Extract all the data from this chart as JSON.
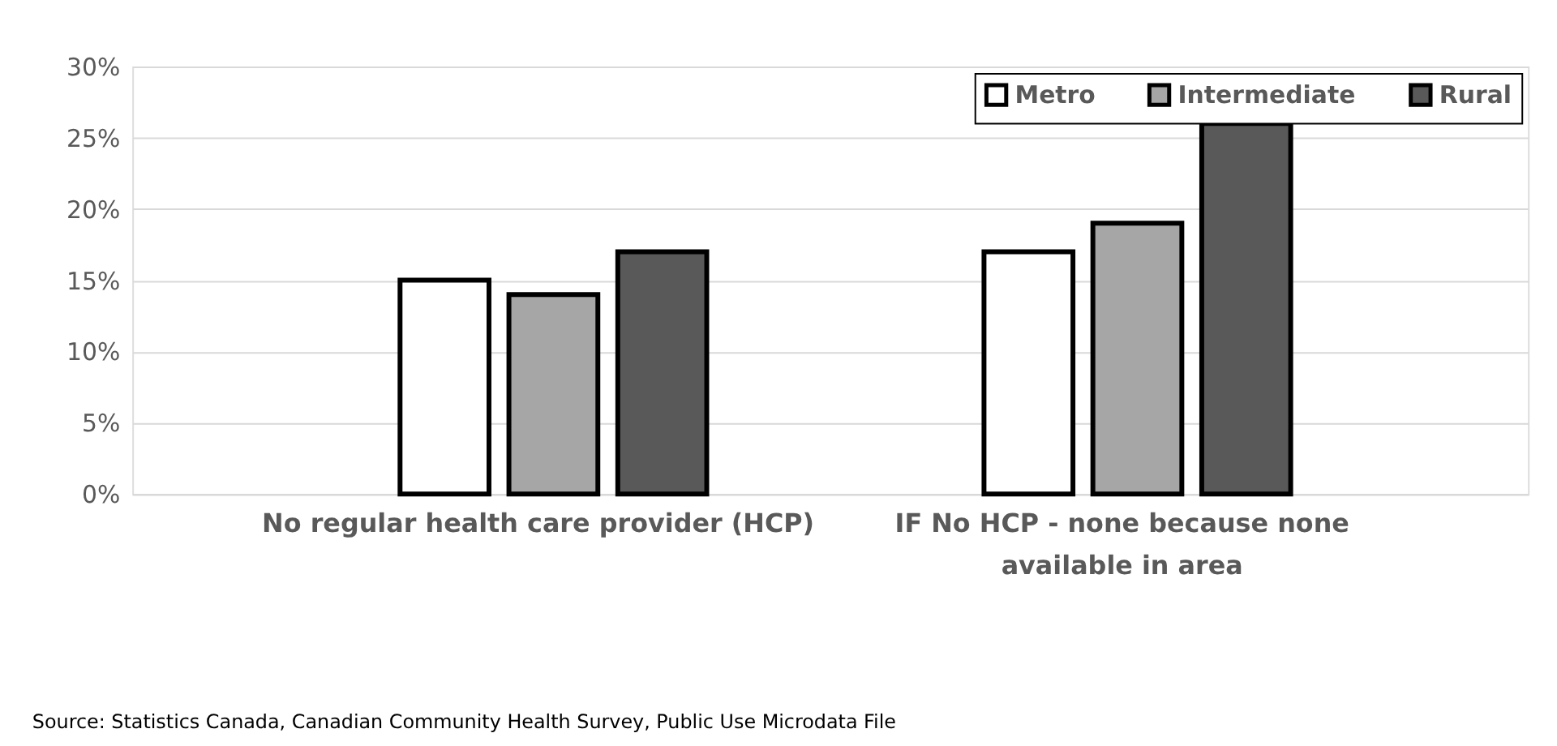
{
  "chart_data": {
    "type": "bar",
    "categories": [
      "No regular health care provider (HCP)",
      "IF No HCP - none because none available in area"
    ],
    "series": [
      {
        "name": "Metro",
        "color": "#ffffff",
        "values": [
          15,
          17
        ]
      },
      {
        "name": "Intermediate",
        "color": "#a6a6a6",
        "values": [
          14,
          19
        ]
      },
      {
        "name": "Rural",
        "color": "#595959",
        "values": [
          17,
          26
        ]
      }
    ],
    "ylim": [
      0,
      30
    ],
    "yticks": [
      {
        "value": 0,
        "label": "0%"
      },
      {
        "value": 5,
        "label": "5%"
      },
      {
        "value": 10,
        "label": "10%"
      },
      {
        "value": 15,
        "label": "15%"
      },
      {
        "value": 20,
        "label": "20%"
      },
      {
        "value": 25,
        "label": "25%"
      },
      {
        "value": 30,
        "label": "30%"
      }
    ],
    "grid": "y",
    "legend": "top right",
    "annotations": [
      "Source: Statistics Canada, Canadian Community Health Survey, Public Use Microdata File"
    ]
  }
}
